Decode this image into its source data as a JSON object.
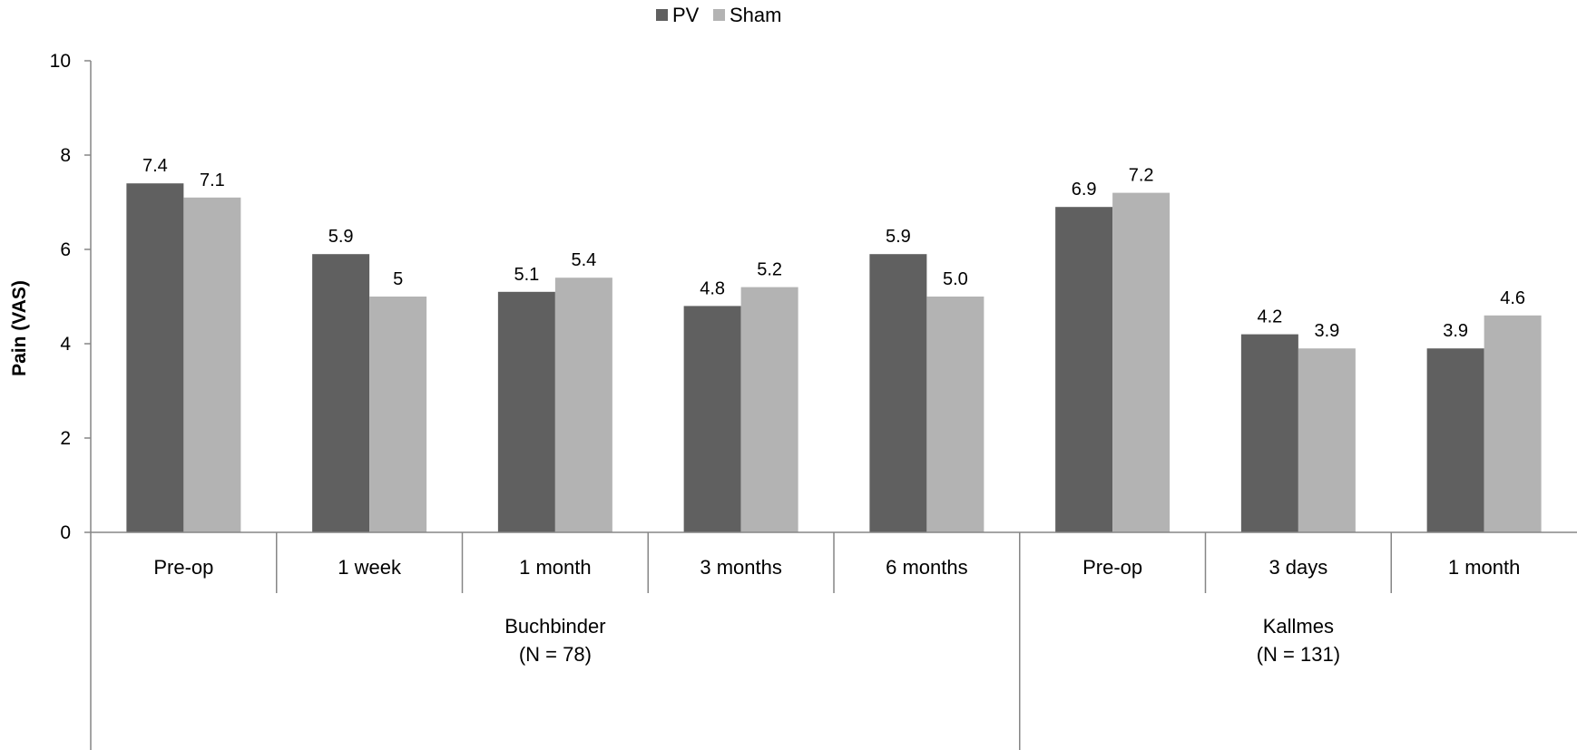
{
  "chart_data": {
    "type": "bar",
    "title": "",
    "xlabel": "",
    "ylabel": "Pain (VAS)",
    "ylim": [
      0,
      10
    ],
    "yticks": [
      0,
      2,
      4,
      6,
      8,
      10
    ],
    "legend_position": "top-center",
    "categories": [
      "Pre-op",
      "1 week",
      "1 month",
      "3 months",
      "6 months",
      "Pre-op",
      "3 days",
      "1 month"
    ],
    "groups": [
      {
        "label": "Buchbinder",
        "sublabel": "(N = 78)",
        "size": 5
      },
      {
        "label": "Kallmes",
        "sublabel": "(N = 131)",
        "size": 3
      }
    ],
    "series": [
      {
        "name": "PV",
        "color": "#606060",
        "values": [
          7.4,
          5.9,
          5.1,
          4.8,
          5.9,
          6.9,
          4.2,
          3.9
        ],
        "labels": [
          "7.4",
          "5.9",
          "5.1",
          "4.8",
          "5.9",
          "6.9",
          "4.2",
          "3.9"
        ]
      },
      {
        "name": "Sham",
        "color": "#b3b3b3",
        "values": [
          7.1,
          5.0,
          5.4,
          5.2,
          5.0,
          7.2,
          3.9,
          4.6
        ],
        "labels": [
          "7.1",
          "5",
          "5.4",
          "5.2",
          "5.0",
          "7.2",
          "3.9",
          "4.6"
        ]
      }
    ]
  }
}
